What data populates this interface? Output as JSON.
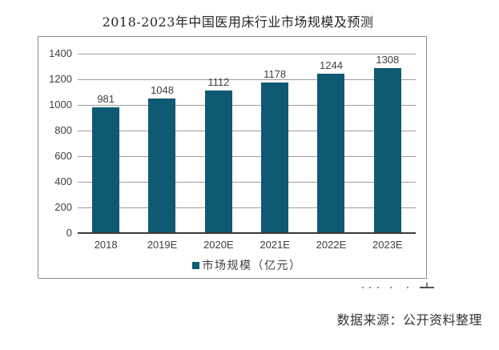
{
  "title": "2018-2023年中国医用床行业市场规模及预测",
  "source_note": "数据来源：公开资料整理",
  "legend": {
    "label": "市场规模（亿元）"
  },
  "colors": {
    "bar": "#0e5a72",
    "gridline": "#9d9d9d",
    "axis_line": "#3a3a3a",
    "frame_border": "#8c8c8c",
    "text": "#404040"
  },
  "chart_data": {
    "type": "bar",
    "title": "2018-2023年中国医用床行业市场规模及预测",
    "series_name": "市场规模（亿元）",
    "categories": [
      "2018",
      "2019E",
      "2020E",
      "2021E",
      "2022E",
      "2023E"
    ],
    "values": [
      981,
      1048,
      1112,
      1178,
      1244,
      1308
    ],
    "xlabel": "",
    "ylabel": "",
    "ylim": [
      0,
      1400
    ],
    "yticks": [
      0,
      200,
      400,
      600,
      800,
      1000,
      1200,
      1400
    ],
    "grid": true,
    "legend_position": "bottom",
    "bar_color": "#0e5a72"
  }
}
